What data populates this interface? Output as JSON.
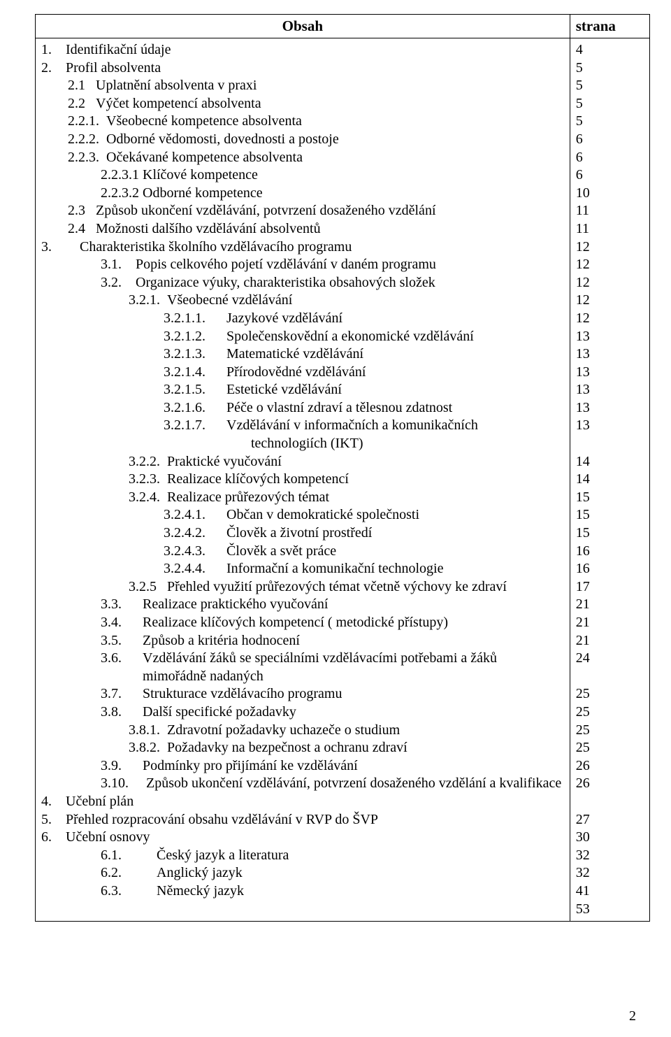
{
  "header": {
    "content_title": "Obsah",
    "page_title": "strana"
  },
  "page_number_bottom": "2",
  "toc": [
    {
      "num": "1.",
      "text": "Identifikační údaje",
      "page": "4",
      "indent": "ind0",
      "numw": 6
    },
    {
      "num": "2.",
      "text": "Profil absolventa",
      "page": "5",
      "indent": "ind0",
      "numw": 6
    },
    {
      "num": "2.1",
      "text": "Uplatnění absolventa v praxi",
      "page": "5",
      "indent": "ind1",
      "numw": 6
    },
    {
      "num": "2.2",
      "text": "Výčet kompetencí absolventa",
      "page": "5",
      "indent": "ind1",
      "numw": 6
    },
    {
      "num": "2.2.1.",
      "text": "Všeobecné kompetence absolventa",
      "page": "5",
      "indent": "ind1",
      "numw": 8
    },
    {
      "num": "2.2.2.",
      "text": "Odborné vědomosti, dovednosti a postoje",
      "page": "6",
      "indent": "ind1",
      "numw": 8
    },
    {
      "num": "2.2.3.",
      "text": "Očekávané kompetence absolventa",
      "page": "6",
      "indent": "ind1",
      "numw": 8
    },
    {
      "num": "2.2.3.1",
      "text": "Klíčové kompetence",
      "page": "6",
      "indent": "ind2",
      "numw": 8
    },
    {
      "num": "2.2.3.2",
      "text": "Odborné kompetence",
      "page": "10",
      "indent": "ind2",
      "numw": 8
    },
    {
      "num": "2.3",
      "text": "Způsob ukončení vzdělávání, potvrzení dosaženého vzdělání",
      "page": "11",
      "indent": "ind1",
      "numw": 6
    },
    {
      "num": "2.4",
      "text": "Možnosti dalšího vzdělávání absolventů",
      "page": "11",
      "indent": "ind1",
      "numw": 6
    },
    {
      "num": "3.",
      "text": "Charakteristika školního vzdělávacího programu",
      "page": "12",
      "indent": "ind0",
      "numw": 10
    },
    {
      "num": "3.1.",
      "text": "Popis celkového pojetí vzdělávání v daném programu",
      "page": "12",
      "indent": "ind2",
      "numw": 8
    },
    {
      "num": "3.2.",
      "text": "Organizace výuky, charakteristika obsahových složek",
      "page": "12",
      "indent": "ind2",
      "numw": 8
    },
    {
      "num": "3.2.1.",
      "text": "Všeobecné vzdělávání",
      "page": "12",
      "indent": "ind3",
      "numw": 8
    },
    {
      "num": "3.2.1.1.",
      "text": "Jazykové vzdělávání",
      "page": "12",
      "indent": "ind4",
      "numw": 14
    },
    {
      "num": "3.2.1.2.",
      "text": "Společenskovědní a ekonomické vzdělávání",
      "page": "13",
      "indent": "ind4",
      "numw": 14
    },
    {
      "num": "3.2.1.3.",
      "text": "Matematické vzdělávání",
      "page": "13",
      "indent": "ind4",
      "numw": 14
    },
    {
      "num": "3.2.1.4.",
      "text": "Přírodovědné vzdělávání",
      "page": "13",
      "indent": "ind4",
      "numw": 14
    },
    {
      "num": "3.2.1.5.",
      "text": "Estetické vzdělávání",
      "page": "13",
      "indent": "ind4",
      "numw": 14
    },
    {
      "num": "3.2.1.6.",
      "text": "Péče o vlastní zdraví a tělesnou zdatnost",
      "page": "13",
      "indent": "ind4",
      "numw": 14
    },
    {
      "num": "3.2.1.7.",
      "text": "Vzdělávání v informačních a komunikačních",
      "page": "13",
      "indent": "ind4",
      "numw": 14
    },
    {
      "num": "",
      "text": "technologiích (IKT)",
      "page": "",
      "indent": "ind5",
      "numw": 0
    },
    {
      "num": "3.2.2.",
      "text": "Praktické vyučování",
      "page": "14",
      "indent": "ind3",
      "numw": 8
    },
    {
      "num": "3.2.3.",
      "text": "Realizace klíčových kompetencí",
      "page": "14",
      "indent": "ind3",
      "numw": 8
    },
    {
      "num": "3.2.4.",
      "text": "Realizace průřezových témat",
      "page": "15",
      "indent": "ind3",
      "numw": 8
    },
    {
      "num": "3.2.4.1.",
      "text": "Občan v demokratické společnosti",
      "page": "15",
      "indent": "ind4",
      "numw": 14
    },
    {
      "num": "3.2.4.2.",
      "text": "Člověk a životní prostředí",
      "page": "15",
      "indent": "ind4",
      "numw": 14
    },
    {
      "num": "3.2.4.3.",
      "text": "Člověk a svět práce",
      "page": "16",
      "indent": "ind4",
      "numw": 14
    },
    {
      "num": "3.2.4.4.",
      "text": "Informační a komunikační technologie",
      "page": "16",
      "indent": "ind4",
      "numw": 14
    },
    {
      "num": "3.2.5",
      "text": "Přehled využití průřezových témat včetně výchovy ke zdraví",
      "page": "17",
      "indent": "ind3",
      "numw": 8
    },
    {
      "num": "3.3.",
      "text": "Realizace praktického vyučování",
      "page": "21",
      "indent": "ind2",
      "numw": 10
    },
    {
      "num": "3.4.",
      "text": "Realizace klíčových kompetencí ( metodické přístupy)",
      "page": "21",
      "indent": "ind2",
      "numw": 10
    },
    {
      "num": "3.5.",
      "text": "Způsob a kritéria hodnocení",
      "page": "21",
      "indent": "ind2",
      "numw": 10
    },
    {
      "num": "3.6.",
      "text": "Vzdělávání žáků se speciálními vzdělávacími potřebami a žáků mimořádně nadaných",
      "page": "24",
      "indent": "ind2",
      "numw": 10,
      "wrap": true
    },
    {
      "num": "3.7.",
      "text": "Strukturace vzdělávacího programu",
      "page": "25",
      "indent": "ind2",
      "numw": 10
    },
    {
      "num": "3.8.",
      "text": "Další specifické požadavky",
      "page": "25",
      "indent": "ind2",
      "numw": 10
    },
    {
      "num": "3.8.1.",
      "text": "Zdravotní požadavky uchazeče o studium",
      "page": "25",
      "indent": "ind3",
      "numw": 8
    },
    {
      "num": "3.8.2.",
      "text": "Požadavky na bezpečnost a ochranu zdraví",
      "page": "25",
      "indent": "ind3",
      "numw": 8
    },
    {
      "num": "3.9.",
      "text": "Podmínky pro přijímání ke vzdělávání",
      "page": "26",
      "indent": "ind2",
      "numw": 10
    },
    {
      "num": "3.10.",
      "text": "Způsob ukončení vzdělávání, potvrzení dosaženého vzdělání a kvalifikace",
      "page": "26",
      "indent": "ind2",
      "numw": 10,
      "wrap": true
    },
    {
      "num": "4.",
      "text": "Učební plán",
      "page": "27",
      "indent": "ind0",
      "numw": 6
    },
    {
      "num": "5.",
      "text": "Přehled rozpracování obsahu vzdělávání v RVP do ŠVP",
      "page": "30",
      "indent": "ind0",
      "numw": 6
    },
    {
      "num": "6.",
      "text": "Učební osnovy",
      "page": "32",
      "indent": "ind0",
      "numw": 6
    },
    {
      "num": "6.1.",
      "text": "Český jazyk a literatura",
      "page": "32",
      "indent": "ind2",
      "numw": 14
    },
    {
      "num": "6.2.",
      "text": "Anglický jazyk",
      "page": "41",
      "indent": "ind2",
      "numw": 14
    },
    {
      "num": "6.3.",
      "text": "Německý jazyk",
      "page": "53",
      "indent": "ind2",
      "numw": 14
    }
  ]
}
